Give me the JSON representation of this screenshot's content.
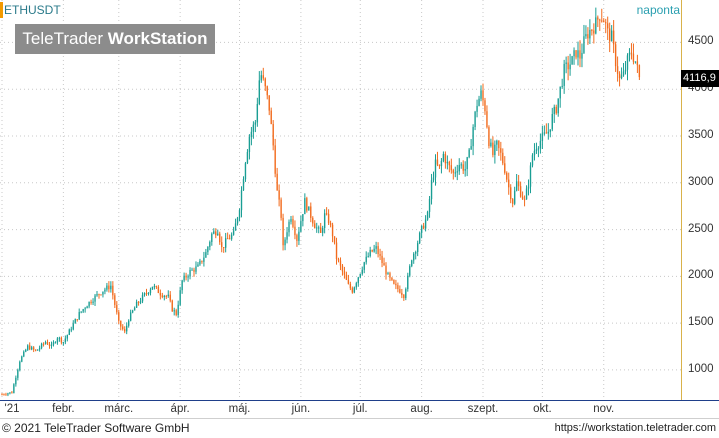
{
  "header": {
    "symbol": "ETHUSDT",
    "period": "naponta"
  },
  "logo": {
    "part1": "TeleTrader ",
    "part2": "WorkStation"
  },
  "footer": {
    "copyright": "© 2021  TeleTrader Software GmbH",
    "url": "https://workstation.teletrader.com"
  },
  "colors": {
    "up": "#1a9e94",
    "down": "#f26b1d",
    "grid": "#c8c8c8",
    "last_price_bg": "#000000"
  },
  "chart_data": {
    "type": "candlestick",
    "title": "ETHUSDT",
    "period": "naponta",
    "last_price_label": "4116,9",
    "yticks": [
      1000,
      1500,
      2000,
      2500,
      3000,
      3500,
      4000,
      4500
    ],
    "ytick_labels": [
      "1000",
      "1500",
      "2000",
      "2500",
      "3000",
      "3500",
      "4000",
      "4500"
    ],
    "ylim": [
      700,
      4900
    ],
    "xticks": [
      {
        "label": "'21",
        "day": 0
      },
      {
        "label": "febr.",
        "day": 31
      },
      {
        "label": "márc.",
        "day": 59
      },
      {
        "label": "ápr.",
        "day": 90
      },
      {
        "label": "máj.",
        "day": 120
      },
      {
        "label": "jún.",
        "day": 151
      },
      {
        "label": "júl.",
        "day": 181
      },
      {
        "label": "aug.",
        "day": 212
      },
      {
        "label": "szept.",
        "day": 243
      },
      {
        "label": "okt.",
        "day": 273
      },
      {
        "label": "nov.",
        "day": 304
      }
    ],
    "xlim": [
      0,
      340
    ],
    "close_path": [
      [
        0,
        740
      ],
      [
        5,
        760
      ],
      [
        9,
        1100
      ],
      [
        13,
        1250
      ],
      [
        17,
        1200
      ],
      [
        22,
        1300
      ],
      [
        25,
        1250
      ],
      [
        28,
        1350
      ],
      [
        31,
        1300
      ],
      [
        35,
        1450
      ],
      [
        39,
        1600
      ],
      [
        43,
        1700
      ],
      [
        47,
        1780
      ],
      [
        51,
        1850
      ],
      [
        55,
        1900
      ],
      [
        57,
        1700
      ],
      [
        59,
        1500
      ],
      [
        62,
        1400
      ],
      [
        64,
        1550
      ],
      [
        68,
        1700
      ],
      [
        72,
        1800
      ],
      [
        76,
        1900
      ],
      [
        80,
        1820
      ],
      [
        84,
        1780
      ],
      [
        86,
        1650
      ],
      [
        88,
        1600
      ],
      [
        91,
        1950
      ],
      [
        95,
        2050
      ],
      [
        99,
        2100
      ],
      [
        103,
        2250
      ],
      [
        106,
        2450
      ],
      [
        109,
        2500
      ],
      [
        111,
        2300
      ],
      [
        114,
        2400
      ],
      [
        117,
        2450
      ],
      [
        120,
        2750
      ],
      [
        123,
        3250
      ],
      [
        125,
        3500
      ],
      [
        128,
        3650
      ],
      [
        130,
        4100
      ],
      [
        131,
        4150
      ],
      [
        133,
        4000
      ],
      [
        135,
        3800
      ],
      [
        137,
        3400
      ],
      [
        139,
        2900
      ],
      [
        141,
        2650
      ],
      [
        142,
        2300
      ],
      [
        144,
        2500
      ],
      [
        146,
        2650
      ],
      [
        149,
        2400
      ],
      [
        151,
        2600
      ],
      [
        153,
        2800
      ],
      [
        155,
        2700
      ],
      [
        158,
        2550
      ],
      [
        161,
        2450
      ],
      [
        163,
        2650
      ],
      [
        165,
        2600
      ],
      [
        167,
        2450
      ],
      [
        169,
        2200
      ],
      [
        171,
        2100
      ],
      [
        173,
        2000
      ],
      [
        175,
        1900
      ],
      [
        177,
        1850
      ],
      [
        180,
        2000
      ],
      [
        183,
        2150
      ],
      [
        186,
        2250
      ],
      [
        189,
        2300
      ],
      [
        192,
        2150
      ],
      [
        195,
        2000
      ],
      [
        198,
        1900
      ],
      [
        201,
        1850
      ],
      [
        203,
        1800
      ],
      [
        205,
        1980
      ],
      [
        207,
        2200
      ],
      [
        209,
        2300
      ],
      [
        212,
        2500
      ],
      [
        215,
        2650
      ],
      [
        217,
        3000
      ],
      [
        219,
        3200
      ],
      [
        221,
        3150
      ],
      [
        223,
        3300
      ],
      [
        225,
        3200
      ],
      [
        228,
        3100
      ],
      [
        231,
        3200
      ],
      [
        234,
        3150
      ],
      [
        236,
        3300
      ],
      [
        238,
        3600
      ],
      [
        240,
        3850
      ],
      [
        242,
        3950
      ],
      [
        244,
        3800
      ],
      [
        246,
        3450
      ],
      [
        248,
        3300
      ],
      [
        250,
        3400
      ],
      [
        252,
        3300
      ],
      [
        254,
        3150
      ],
      [
        256,
        2950
      ],
      [
        258,
        2800
      ],
      [
        260,
        3000
      ],
      [
        262,
        2900
      ],
      [
        264,
        2800
      ],
      [
        266,
        3000
      ],
      [
        268,
        3300
      ],
      [
        270,
        3400
      ],
      [
        272,
        3450
      ],
      [
        274,
        3500
      ],
      [
        276,
        3550
      ],
      [
        278,
        3700
      ],
      [
        280,
        3800
      ],
      [
        282,
        4000
      ],
      [
        284,
        4200
      ],
      [
        286,
        4250
      ],
      [
        288,
        4300
      ],
      [
        290,
        4400
      ],
      [
        292,
        4350
      ],
      [
        294,
        4500
      ],
      [
        296,
        4600
      ],
      [
        298,
        4650
      ],
      [
        300,
        4700
      ],
      [
        302,
        4800
      ],
      [
        304,
        4750
      ],
      [
        306,
        4600
      ],
      [
        308,
        4550
      ],
      [
        310,
        4300
      ],
      [
        312,
        4100
      ],
      [
        314,
        4150
      ],
      [
        316,
        4300
      ],
      [
        318,
        4400
      ],
      [
        320,
        4300
      ],
      [
        322,
        4116.9
      ]
    ]
  }
}
